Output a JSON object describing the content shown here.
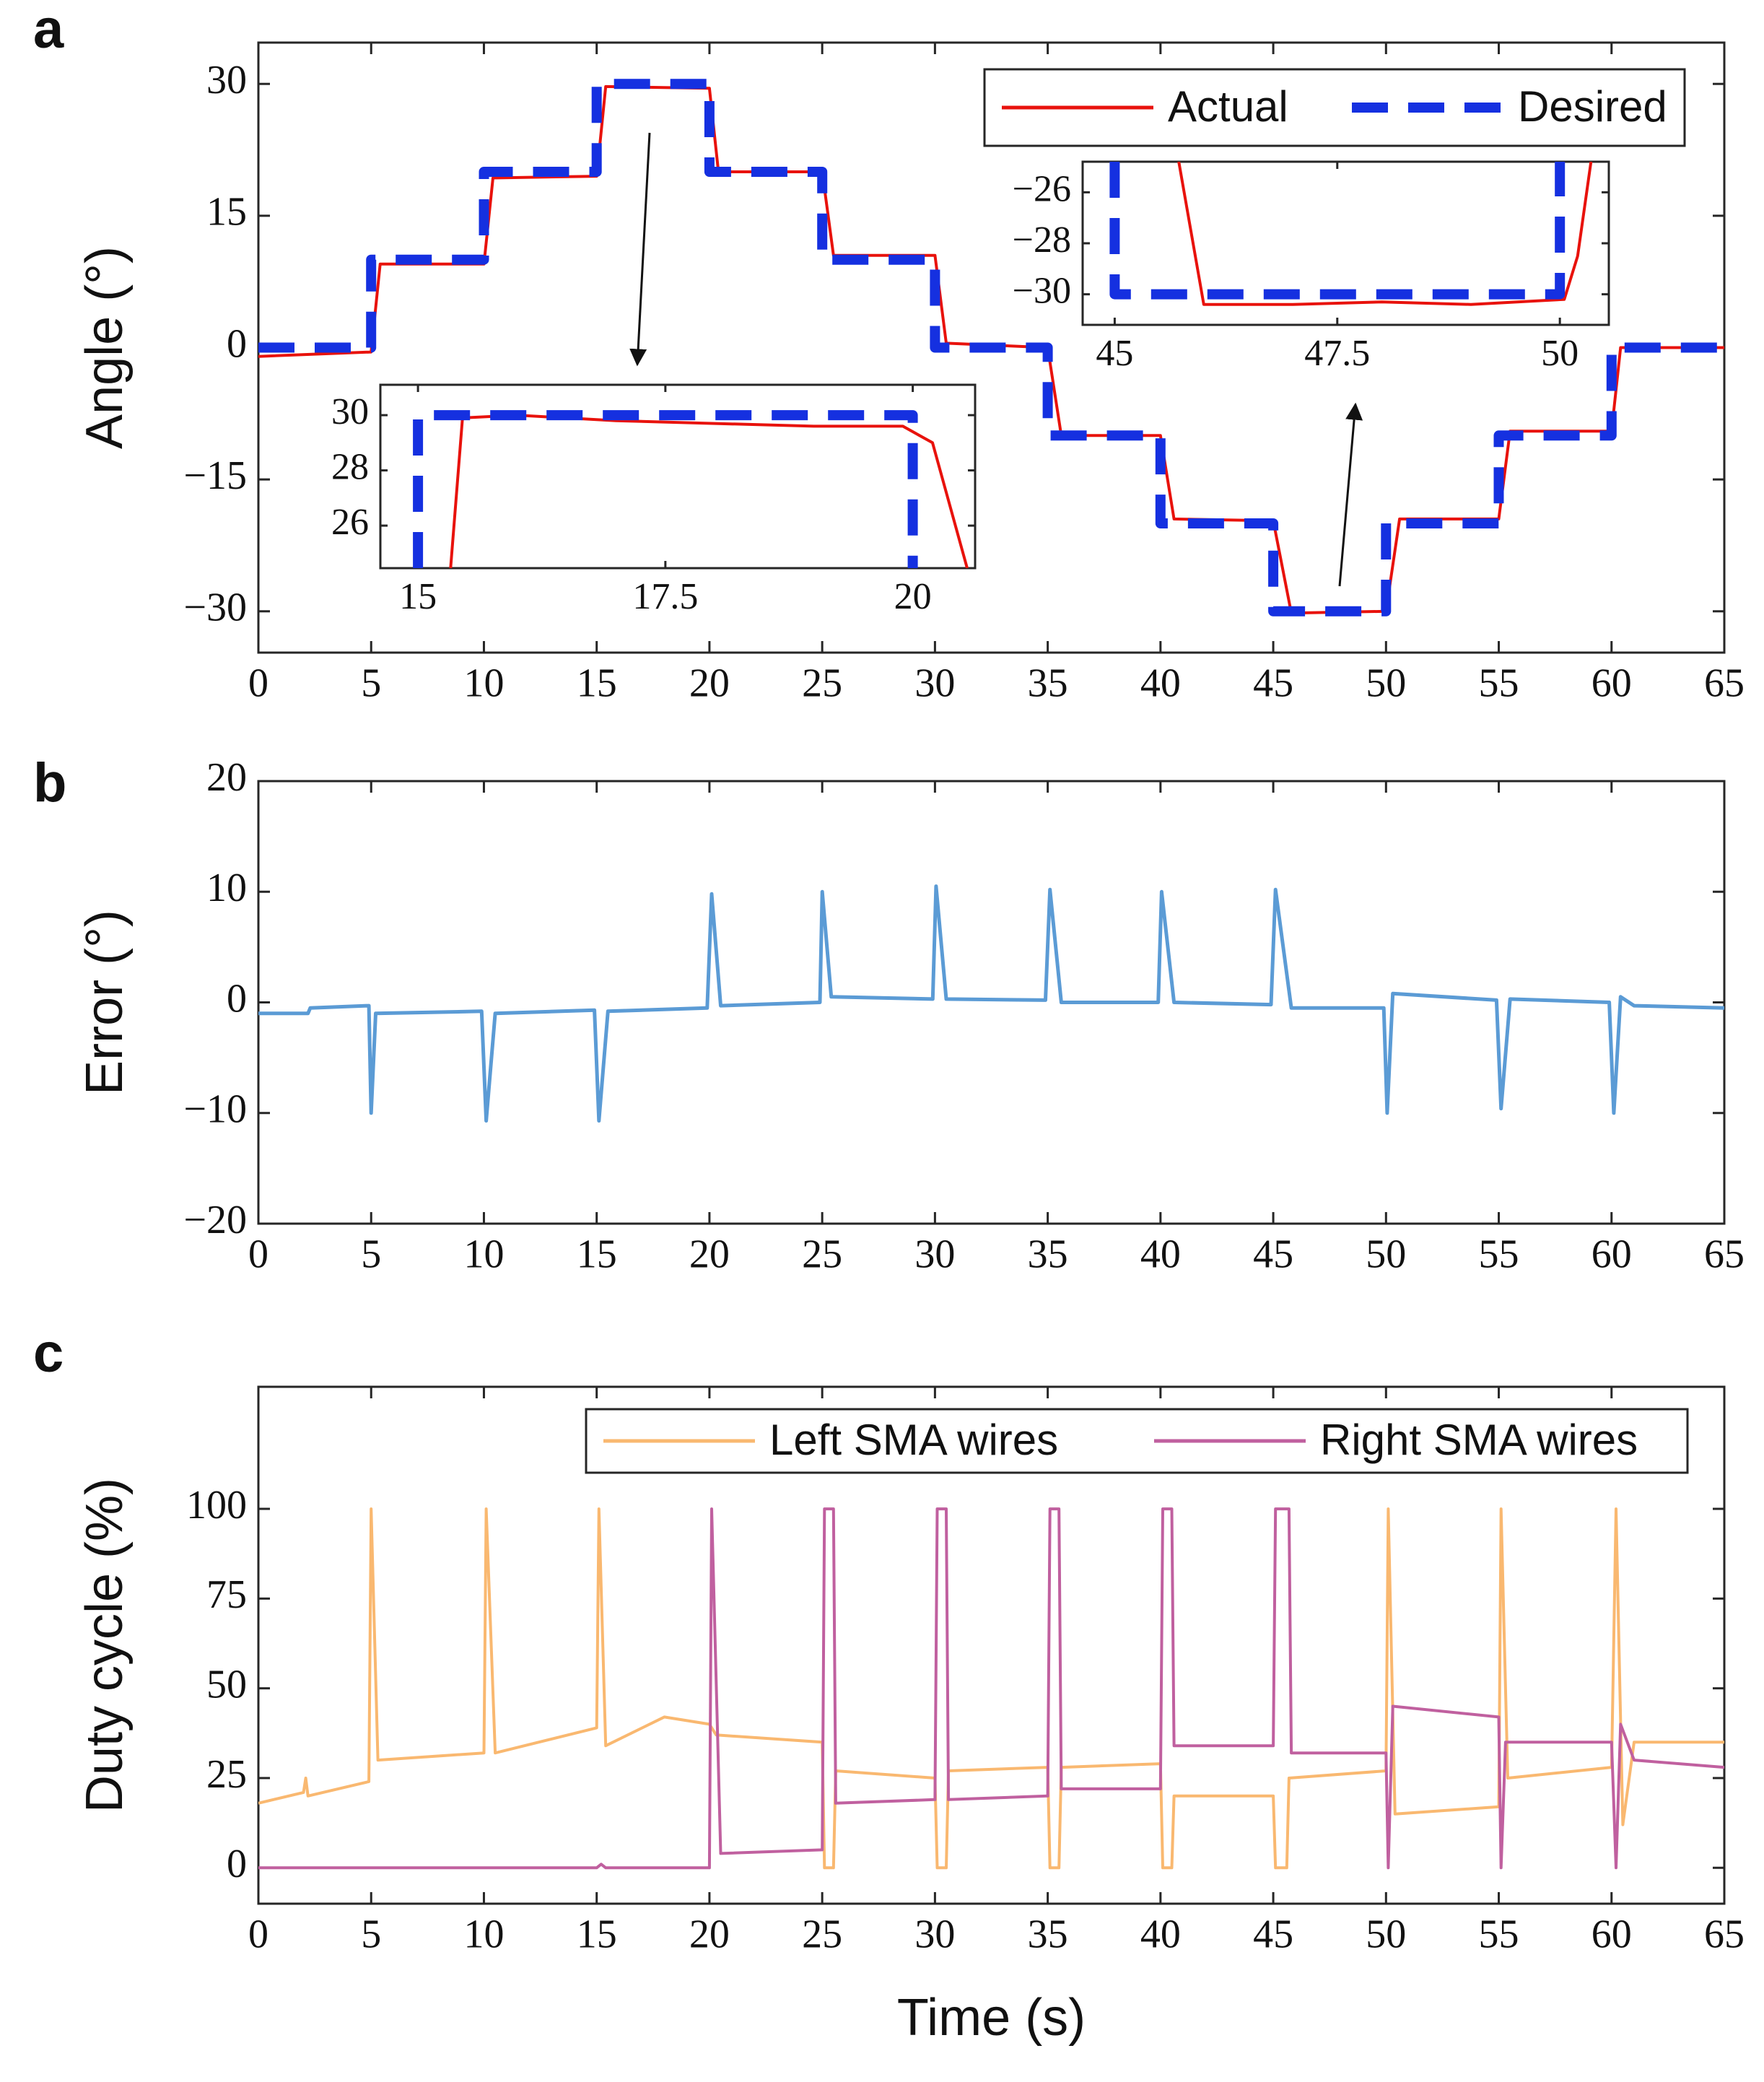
{
  "chart_data": [
    {
      "type": "line",
      "label": "a",
      "ylabel": "Angle (°)",
      "xlim": [
        0,
        65
      ],
      "ylim": [
        -34.7,
        34.7
      ],
      "xticks": [
        0,
        5,
        10,
        15,
        20,
        25,
        30,
        35,
        40,
        45,
        50,
        55,
        60,
        65
      ],
      "yticks": [
        {
          "value": -30,
          "label": "−30"
        },
        {
          "value": -15,
          "label": "−15"
        },
        0,
        15,
        30
      ],
      "legend": "upper right",
      "series": [
        {
          "name": "Actual",
          "color": "#e8120c",
          "dash": false,
          "x": [
            0,
            5,
            5.4,
            10,
            10.4,
            15,
            15.4,
            20,
            20.4,
            25,
            25.5,
            30,
            30.5,
            35,
            35.6,
            40,
            40.6,
            45,
            45.8,
            50,
            50.6,
            55,
            55.5,
            60,
            60.4,
            65
          ],
          "values": [
            -1,
            -0.5,
            9.5,
            9.5,
            19.3,
            19.5,
            29.7,
            29.5,
            20,
            20,
            10.5,
            10.5,
            0.5,
            0,
            -10,
            -10,
            -19.5,
            -19.7,
            -30.2,
            -30,
            -19.5,
            -19.5,
            -9.5,
            -9.5,
            0,
            0
          ]
        },
        {
          "name": "Desired",
          "color": "#1530e0",
          "dash": true,
          "x": [
            0,
            5,
            5,
            10,
            10,
            15,
            15,
            20,
            20,
            25,
            25,
            30,
            30,
            35,
            35,
            40,
            40,
            45,
            45,
            50,
            50,
            55,
            55,
            60,
            60,
            65
          ],
          "values": [
            0,
            0,
            10,
            10,
            20,
            20,
            30,
            30,
            20,
            20,
            10,
            10,
            0,
            0,
            -10,
            -10,
            -20,
            -20,
            -30,
            -30,
            -20,
            -20,
            -10,
            -10,
            0,
            0
          ]
        }
      ]
    },
    {
      "type": "line",
      "xlim": [
        14.62,
        20.63
      ],
      "ylim": [
        24.46,
        31.1
      ],
      "xticks": [
        15,
        17.5,
        20
      ],
      "yticks": [
        26,
        28,
        30
      ],
      "series": [
        {
          "name": "Actual",
          "color": "#e8120c",
          "dash": false,
          "x": [
            15.33,
            15.45,
            16,
            17,
            18,
            19,
            19.9,
            20.2,
            20.55
          ],
          "values": [
            24.46,
            29.9,
            30,
            29.8,
            29.7,
            29.6,
            29.6,
            29,
            24.46
          ]
        },
        {
          "name": "Desired",
          "color": "#1530e0",
          "dash": true,
          "x": [
            15,
            15,
            20,
            20
          ],
          "values": [
            24.46,
            30,
            30,
            24.46
          ]
        }
      ]
    },
    {
      "type": "line",
      "xlim": [
        44.64,
        50.55
      ],
      "ylim": [
        -31.2,
        -24.8
      ],
      "xticks": [
        45,
        {
          "value": 47.5,
          "label": "47.5"
        },
        50
      ],
      "yticks": [
        {
          "value": -30,
          "label": "−30"
        },
        {
          "value": -28,
          "label": "−28"
        },
        {
          "value": -26,
          "label": "−26"
        }
      ],
      "series": [
        {
          "name": "Actual",
          "color": "#e8120c",
          "dash": false,
          "x": [
            45.72,
            46.0,
            47,
            48,
            49,
            50.05,
            50.2,
            50.35
          ],
          "values": [
            -24.8,
            -30.4,
            -30.4,
            -30.3,
            -30.4,
            -30.2,
            -28.5,
            -24.8
          ]
        },
        {
          "name": "Desired",
          "color": "#1530e0",
          "dash": true,
          "x": [
            45,
            45,
            50,
            50
          ],
          "values": [
            -24.8,
            -30,
            -30,
            -24.8
          ]
        }
      ]
    },
    {
      "type": "line",
      "label": "b",
      "ylabel": "Error (°)",
      "xlim": [
        0,
        65
      ],
      "ylim": [
        -20,
        20
      ],
      "xticks": [
        0,
        5,
        10,
        15,
        20,
        25,
        30,
        35,
        40,
        45,
        50,
        55,
        60,
        65
      ],
      "yticks": [
        {
          "value": -20,
          "label": "−20"
        },
        {
          "value": -10,
          "label": "−10"
        },
        0,
        10,
        20
      ],
      "series": [
        {
          "name": "Error",
          "color": "#5b9bd5",
          "dash": false,
          "x": [
            0,
            2.2,
            2.3,
            4.9,
            5.0,
            5.2,
            9.9,
            10.1,
            10.5,
            14.9,
            15.1,
            15.5,
            19.9,
            20.1,
            20.5,
            24.9,
            25.0,
            25.4,
            29.9,
            30.05,
            30.5,
            34.9,
            35.1,
            35.6,
            39.9,
            40.05,
            40.6,
            44.9,
            45.1,
            45.8,
            49.9,
            50.05,
            50.3,
            54.9,
            55.1,
            55.5,
            59.9,
            60.1,
            60.4,
            61,
            65
          ],
          "values": [
            -1,
            -1,
            -0.5,
            -0.3,
            -10,
            -1,
            -0.8,
            -10.7,
            -1,
            -0.7,
            -10.7,
            -0.8,
            -0.5,
            9.8,
            -0.3,
            0,
            10,
            0.5,
            0.3,
            10.5,
            0.3,
            0.2,
            10.2,
            0,
            0,
            10,
            0,
            -0.2,
            10.2,
            -0.5,
            -0.5,
            -10,
            0.8,
            0.2,
            -9.6,
            0.3,
            0,
            -10,
            0.5,
            -0.3,
            -0.5
          ]
        }
      ]
    },
    {
      "type": "line",
      "label": "c",
      "ylabel": "Duty cycle (%)",
      "xlabel": "Time (s)",
      "xlim": [
        0,
        65
      ],
      "ylim": [
        -10,
        134
      ],
      "xticks": [
        0,
        5,
        10,
        15,
        20,
        25,
        30,
        35,
        40,
        45,
        50,
        55,
        60,
        65
      ],
      "yticks": [
        0,
        25,
        50,
        75,
        100
      ],
      "legend": "upper right",
      "series": [
        {
          "name": "Left SMA wires",
          "color": "#f9b870",
          "dash": false,
          "x": [
            0,
            2,
            2.1,
            2.2,
            4.9,
            5.0,
            5.3,
            10,
            10.1,
            10.5,
            15,
            15.1,
            15.4,
            18,
            20,
            20.3,
            25,
            25.1,
            25.5,
            25.6,
            30,
            30.1,
            30.5,
            30.6,
            35,
            35.1,
            35.5,
            35.6,
            40,
            40.1,
            40.5,
            40.6,
            45,
            45.1,
            45.6,
            45.7,
            50,
            50.1,
            50.4,
            55,
            55.1,
            55.4,
            60,
            60.2,
            60.5,
            61,
            65
          ],
          "values": [
            18,
            21,
            25,
            20,
            24,
            100,
            30,
            32,
            100,
            32,
            39,
            100,
            34,
            42,
            40,
            37,
            35,
            0,
            0,
            27,
            25,
            0,
            0,
            27,
            28,
            0,
            0,
            28,
            29,
            0,
            0,
            20,
            20,
            0,
            0,
            25,
            27,
            100,
            15,
            17,
            100,
            25,
            28,
            100,
            12,
            35,
            35
          ]
        },
        {
          "name": "Right SMA wires",
          "color": "#c0609f",
          "dash": false,
          "x": [
            0,
            15,
            15.2,
            15.4,
            20,
            20.1,
            20.5,
            25,
            25.1,
            25.5,
            25.6,
            30,
            30.1,
            30.5,
            30.6,
            35,
            35.1,
            35.5,
            35.6,
            40,
            40.1,
            40.5,
            40.6,
            45,
            45.1,
            45.7,
            45.8,
            50,
            50.1,
            50.3,
            55,
            55.1,
            55.3,
            60,
            60.2,
            60.4,
            61,
            65
          ],
          "values": [
            0,
            0,
            1,
            0,
            0,
            100,
            4,
            5,
            100,
            100,
            18,
            19,
            100,
            100,
            19,
            20,
            100,
            100,
            22,
            22,
            100,
            100,
            34,
            34,
            100,
            100,
            32,
            32,
            0,
            45,
            42,
            0,
            35,
            35,
            0,
            40,
            30,
            28
          ]
        }
      ]
    }
  ]
}
